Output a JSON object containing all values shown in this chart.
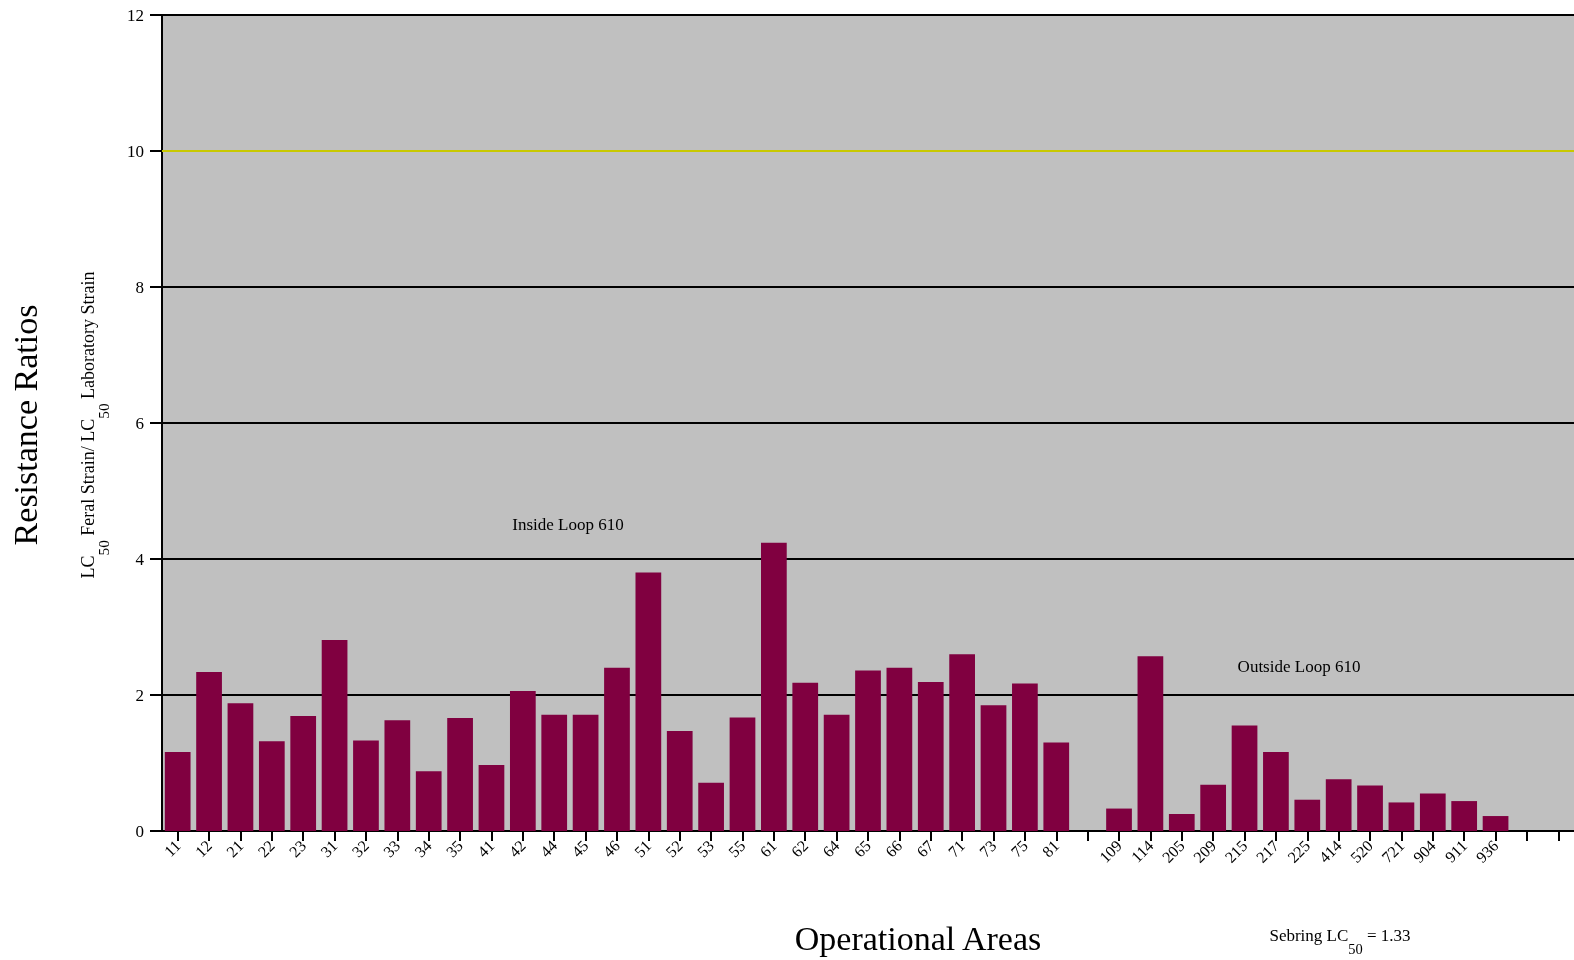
{
  "chart_data": {
    "type": "bar",
    "xlabel": "Operational Areas",
    "ylabel": "Resistance Ratios\nLC$_{50}$ Feral Strain/ LC$_{50}$ Laboratory Strain",
    "categories": [
      "11",
      "12",
      "21",
      "22",
      "23",
      "31",
      "32",
      "33",
      "34",
      "35",
      "41",
      "42",
      "44",
      "45",
      "46",
      "51",
      "52",
      "53",
      "55",
      "61",
      "62",
      "64",
      "65",
      "66",
      "67",
      "71",
      "73",
      "75",
      "81",
      null,
      "109",
      "114",
      "205",
      "209",
      "215",
      "217",
      "225",
      "414",
      "520",
      "721",
      "904",
      "911",
      "936",
      null,
      null
    ],
    "values": [
      1.16,
      2.34,
      1.88,
      1.32,
      1.69,
      2.81,
      1.33,
      1.63,
      0.88,
      1.66,
      0.97,
      2.06,
      1.71,
      1.71,
      2.4,
      3.8,
      1.47,
      0.71,
      1.67,
      4.24,
      2.18,
      1.71,
      2.36,
      2.4,
      2.19,
      2.6,
      1.85,
      2.17,
      1.3,
      null,
      0.33,
      2.57,
      0.25,
      0.68,
      1.55,
      1.16,
      0.46,
      0.76,
      0.67,
      0.42,
      0.55,
      0.44,
      0.22,
      null,
      null
    ],
    "color": "#800040",
    "ylim": [
      0,
      12
    ],
    "yticks": [
      0,
      2,
      4,
      6,
      8,
      10,
      12
    ],
    "grid": true,
    "ref_lines": [
      {
        "axis": "y",
        "value": 10,
        "label": null,
        "color": "#c8c800"
      }
    ],
    "annotations": [
      "Inside Loop 610",
      "Outside Loop 610",
      "Sebring LC$_{50}$ = 1.33"
    ]
  }
}
